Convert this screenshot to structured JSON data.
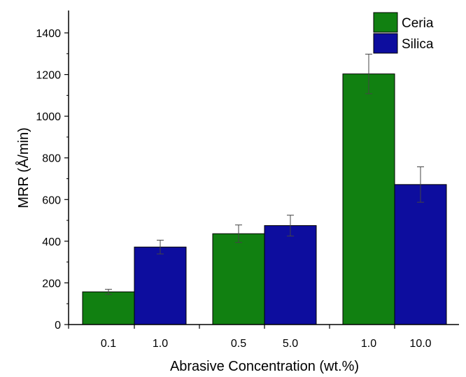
{
  "chart_data": {
    "type": "bar",
    "xlabel": "Abrasive Concentration (wt.%)",
    "ylabel": "MRR (Å/min)",
    "ylim": [
      0,
      1500
    ],
    "yticks": [
      0,
      200,
      400,
      600,
      800,
      1000,
      1200,
      1400
    ],
    "legend_position": "top-right",
    "groups": [
      {
        "bars": [
          {
            "series": "Ceria",
            "label": "0.1",
            "value": 157,
            "error": 12
          },
          {
            "series": "Silica",
            "label": "1.0",
            "value": 372,
            "error": 33
          }
        ]
      },
      {
        "bars": [
          {
            "series": "Ceria",
            "label": "0.5",
            "value": 436,
            "error": 42
          },
          {
            "series": "Silica",
            "label": "5.0",
            "value": 475,
            "error": 50
          }
        ]
      },
      {
        "bars": [
          {
            "series": "Ceria",
            "label": "1.0",
            "value": 1203,
            "error": 95
          },
          {
            "series": "Silica",
            "label": "10.0",
            "value": 672,
            "error": 85
          }
        ]
      }
    ],
    "series": [
      {
        "name": "Ceria",
        "color": "#118011"
      },
      {
        "name": "Silica",
        "color": "#0d0d9e"
      }
    ]
  }
}
